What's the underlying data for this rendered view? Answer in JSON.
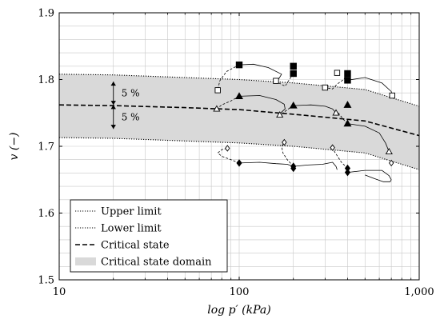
{
  "chart_data": {
    "type": "line",
    "x_scale": "log",
    "xlim": [
      10,
      1000
    ],
    "ylim": [
      1.5,
      1.9
    ],
    "xlabel": "log p′ (kPa)",
    "ylabel": "v (−)",
    "xticks": [
      {
        "value": 10,
        "label": "10"
      },
      {
        "value": 100,
        "label": "100"
      },
      {
        "value": 1000,
        "label": "1,000"
      }
    ],
    "yticks": [
      {
        "value": 1.5,
        "label": "1.5"
      },
      {
        "value": 1.6,
        "label": "1.6"
      },
      {
        "value": 1.7,
        "label": "1.7"
      },
      {
        "value": 1.8,
        "label": "1.8"
      },
      {
        "value": 1.9,
        "label": "1.9"
      }
    ],
    "grid": true,
    "legend_position": "bottom-left",
    "legend": [
      {
        "key": "upper",
        "label": "Upper limit",
        "style": "dotted"
      },
      {
        "key": "lower",
        "label": "Lower limit",
        "style": "dotted"
      },
      {
        "key": "csl",
        "label": "Critical state",
        "style": "dashed"
      },
      {
        "key": "domain",
        "label": "Critical state domain",
        "style": "fill",
        "color": "#d9d9d9"
      }
    ],
    "annotations": [
      {
        "label": "5 %",
        "x": 20,
        "y_from": 1.797,
        "y_to": 1.762
      },
      {
        "label": "5 %",
        "x": 20,
        "y_from": 1.762,
        "y_to": 1.726
      }
    ],
    "lines": {
      "upper": [
        [
          10,
          1.808
        ],
        [
          20,
          1.807
        ],
        [
          50,
          1.803
        ],
        [
          100,
          1.8
        ],
        [
          200,
          1.795
        ],
        [
          500,
          1.785
        ],
        [
          1000,
          1.76
        ]
      ],
      "csl": [
        [
          10,
          1.762
        ],
        [
          20,
          1.761
        ],
        [
          50,
          1.758
        ],
        [
          100,
          1.755
        ],
        [
          200,
          1.748
        ],
        [
          500,
          1.738
        ],
        [
          1000,
          1.716
        ]
      ],
      "lower": [
        [
          10,
          1.713
        ],
        [
          20,
          1.712
        ],
        [
          50,
          1.708
        ],
        [
          100,
          1.705
        ],
        [
          200,
          1.7
        ],
        [
          500,
          1.69
        ],
        [
          1000,
          1.665
        ]
      ]
    },
    "series": [
      {
        "marker": "square-filled",
        "initial_points": [
          [
            100,
            1.822
          ],
          [
            200,
            1.82
          ],
          [
            200,
            1.809
          ],
          [
            400,
            1.809
          ],
          [
            400,
            1.799
          ]
        ],
        "paths": [
          {
            "style": "solid",
            "points": [
              [
                100,
                1.822
              ],
              [
                120,
                1.823
              ],
              [
                145,
                1.818
              ],
              [
                172,
                1.808
              ],
              [
                165,
                1.8
              ]
            ]
          },
          {
            "style": "solid",
            "points": [
              [
                400,
                1.799
              ],
              [
                500,
                1.803
              ],
              [
                620,
                1.795
              ],
              [
                700,
                1.782
              ],
              [
                708,
                1.776
              ]
            ]
          }
        ],
        "end_points": []
      },
      {
        "marker": "square-open",
        "initial_points": [],
        "paths": [
          {
            "style": "dashed",
            "points": [
              [
                100,
                1.822
              ],
              [
                85,
                1.812
              ],
              [
                78,
                1.798
              ],
              [
                76,
                1.784
              ]
            ]
          },
          {
            "style": "dashed",
            "points": [
              [
                200,
                1.809
              ],
              [
                190,
                1.8
              ],
              [
                180,
                1.79
              ],
              [
                160,
                1.797
              ]
            ]
          },
          {
            "style": "dashed",
            "points": [
              [
                400,
                1.809
              ],
              [
                380,
                1.8
              ],
              [
                350,
                1.793
              ],
              [
                330,
                1.786
              ],
              [
                300,
                1.788
              ]
            ]
          }
        ],
        "end_points": [
          [
            76,
            1.784
          ],
          [
            160,
            1.798
          ],
          [
            300,
            1.788
          ],
          [
            350,
            1.81
          ],
          [
            708,
            1.776
          ]
        ]
      },
      {
        "marker": "triangle-filled",
        "initial_points": [
          [
            100,
            1.775
          ],
          [
            200,
            1.761
          ],
          [
            400,
            1.762
          ],
          [
            400,
            1.734
          ]
        ],
        "paths": [
          {
            "style": "solid",
            "points": [
              [
                100,
                1.775
              ],
              [
                130,
                1.776
              ],
              [
                160,
                1.77
              ],
              [
                178,
                1.763
              ],
              [
                180,
                1.756
              ],
              [
                170,
                1.75
              ]
            ]
          },
          {
            "style": "solid",
            "points": [
              [
                200,
                1.761
              ],
              [
                250,
                1.762
              ],
              [
                300,
                1.76
              ],
              [
                330,
                1.756
              ],
              [
                345,
                1.75
              ]
            ]
          },
          {
            "style": "solid",
            "points": [
              [
                400,
                1.734
              ],
              [
                500,
                1.73
              ],
              [
                600,
                1.72
              ],
              [
                650,
                1.705
              ],
              [
                680,
                1.692
              ]
            ]
          }
        ],
        "end_points": []
      },
      {
        "marker": "triangle-open",
        "initial_points": [],
        "paths": [
          {
            "style": "dashed",
            "points": [
              [
                100,
                1.775
              ],
              [
                90,
                1.768
              ],
              [
                80,
                1.762
              ],
              [
                75,
                1.756
              ]
            ]
          },
          {
            "style": "dashed",
            "points": [
              [
                200,
                1.761
              ],
              [
                190,
                1.757
              ],
              [
                175,
                1.75
              ],
              [
                168,
                1.747
              ]
            ]
          },
          {
            "style": "dashed",
            "points": [
              [
                400,
                1.734
              ],
              [
                380,
                1.74
              ],
              [
                360,
                1.748
              ],
              [
                350,
                1.752
              ]
            ]
          }
        ],
        "end_points": [
          [
            75,
            1.756
          ],
          [
            168,
            1.747
          ],
          [
            345,
            1.75
          ],
          [
            680,
            1.692
          ]
        ]
      },
      {
        "marker": "diamond-filled",
        "initial_points": [
          [
            100,
            1.675
          ],
          [
            200,
            1.67
          ],
          [
            200,
            1.667
          ],
          [
            400,
            1.667
          ],
          [
            400,
            1.661
          ]
        ],
        "paths": [
          {
            "style": "solid",
            "points": [
              [
                100,
                1.675
              ],
              [
                130,
                1.676
              ],
              [
                160,
                1.674
              ],
              [
                185,
                1.673
              ],
              [
                200,
                1.67
              ]
            ]
          },
          {
            "style": "solid",
            "points": [
              [
                200,
                1.67
              ],
              [
                240,
                1.672
              ],
              [
                290,
                1.673
              ],
              [
                330,
                1.676
              ],
              [
                345,
                1.67
              ],
              [
                350,
                1.665
              ]
            ]
          },
          {
            "style": "solid",
            "points": [
              [
                400,
                1.661
              ],
              [
                500,
                1.664
              ],
              [
                620,
                1.664
              ],
              [
                680,
                1.656
              ],
              [
                700,
                1.65
              ],
              [
                690,
                1.647
              ],
              [
                630,
                1.647
              ],
              [
                560,
                1.652
              ],
              [
                500,
                1.657
              ]
            ]
          }
        ],
        "end_points": []
      },
      {
        "marker": "diamond-open",
        "initial_points": [],
        "paths": [
          {
            "style": "dashed",
            "points": [
              [
                100,
                1.675
              ],
              [
                90,
                1.68
              ],
              [
                80,
                1.685
              ],
              [
                76,
                1.69
              ],
              [
                80,
                1.695
              ],
              [
                86,
                1.697
              ]
            ]
          },
          {
            "style": "dashed",
            "points": [
              [
                200,
                1.67
              ],
              [
                185,
                1.68
              ],
              [
                175,
                1.69
              ],
              [
                172,
                1.7
              ],
              [
                178,
                1.706
              ]
            ]
          },
          {
            "style": "dashed",
            "points": [
              [
                400,
                1.667
              ],
              [
                370,
                1.676
              ],
              [
                350,
                1.686
              ],
              [
                335,
                1.694
              ],
              [
                330,
                1.698
              ]
            ]
          }
        ],
        "end_points": [
          [
            86,
            1.697
          ],
          [
            178,
            1.706
          ],
          [
            330,
            1.698
          ],
          [
            700,
            1.675
          ]
        ]
      }
    ]
  }
}
